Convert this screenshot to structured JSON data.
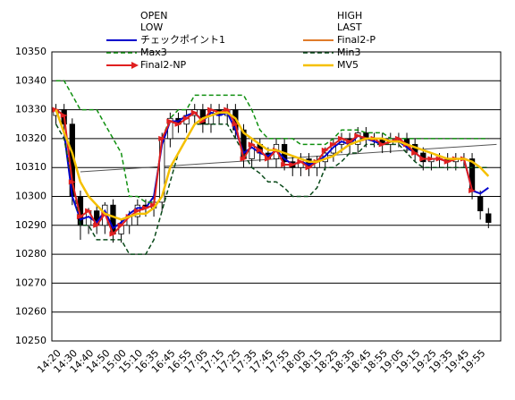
{
  "chart_data": {
    "type": "candlestick",
    "categories": [
      "14:20",
      null,
      "14:30",
      null,
      "14:40",
      null,
      "14:50",
      null,
      "15:00",
      null,
      "15:10",
      null,
      "16:35",
      null,
      "16:45",
      null,
      "16:55",
      null,
      "17:05",
      null,
      "17:15",
      null,
      "17:25",
      null,
      "17:35",
      null,
      "17:45",
      null,
      "17:55",
      null,
      "18:05",
      null,
      "18:15",
      null,
      "18:25",
      null,
      "18:35",
      null,
      "18:45",
      null,
      "18:55",
      null,
      "19:05",
      null,
      "19:15",
      null,
      "19:25",
      null,
      "19:35",
      null,
      "19:45",
      null,
      "19:55",
      null
    ],
    "ylim": [
      10250,
      10350
    ],
    "yticks": [
      10250,
      10260,
      10270,
      10280,
      10290,
      10300,
      10310,
      10320,
      10330,
      10340,
      10350
    ],
    "grid": true,
    "candles": {
      "open": {
        "name": "OPEN",
        "values": [
          10328,
          10330,
          10325,
          10300,
          10290,
          10295,
          10290,
          10297,
          10287,
          10290,
          10293,
          10297,
          10296,
          10298,
          10320,
          10327,
          10325,
          10328,
          10330,
          10325,
          10330,
          10328,
          10330,
          10323,
          10313,
          10318,
          10315,
          10313,
          10318,
          10312,
          10310,
          10313,
          10310,
          10312,
          10315,
          10318,
          10320,
          10318,
          10322,
          10320,
          10320,
          10318,
          10320,
          10320,
          10318,
          10315,
          10312,
          10313,
          10313,
          10312,
          10313,
          10313,
          10300,
          10294
        ]
      },
      "high": {
        "name": "HIGH",
        "values": [
          10332,
          10332,
          10327,
          10302,
          10296,
          10297,
          10298,
          10299,
          10292,
          10295,
          10299,
          10299,
          10300,
          10322,
          10329,
          10329,
          10330,
          10332,
          10332,
          10332,
          10332,
          10332,
          10332,
          10325,
          10320,
          10320,
          10317,
          10320,
          10320,
          10314,
          10315,
          10315,
          10314,
          10317,
          10320,
          10322,
          10322,
          10324,
          10324,
          10322,
          10322,
          10322,
          10322,
          10322,
          10320,
          10317,
          10315,
          10315,
          10315,
          10315,
          10315,
          10315,
          10302,
          10296
        ]
      },
      "low": {
        "name": "LOW",
        "values": [
          10325,
          10322,
          10297,
          10285,
          10287,
          10287,
          10287,
          10284,
          10284,
          10287,
          10290,
          10293,
          10293,
          10295,
          10317,
          10322,
          10322,
          10325,
          10322,
          10322,
          10325,
          10325,
          10320,
          10310,
          10310,
          10312,
          10310,
          10310,
          10309,
          10307,
          10307,
          10307,
          10307,
          10309,
          10312,
          10315,
          10315,
          10315,
          10317,
          10317,
          10315,
          10315,
          10317,
          10315,
          10312,
          10309,
          10309,
          10310,
          10309,
          10309,
          10310,
          10299,
          10292,
          10289
        ]
      },
      "close": {
        "name": "LAST",
        "values": [
          10330,
          10325,
          10300,
          10290,
          10295,
          10290,
          10297,
          10287,
          10290,
          10293,
          10297,
          10296,
          10298,
          10320,
          10327,
          10325,
          10328,
          10330,
          10325,
          10330,
          10328,
          10330,
          10323,
          10313,
          10318,
          10315,
          10313,
          10318,
          10312,
          10310,
          10313,
          10310,
          10312,
          10315,
          10318,
          10320,
          10318,
          10322,
          10320,
          10320,
          10318,
          10320,
          10320,
          10318,
          10315,
          10312,
          10313,
          10313,
          10312,
          10313,
          10313,
          10302,
          10295,
          10291
        ]
      }
    },
    "series": [
      {
        "name": "チェックポイント1",
        "color": "#0000cc",
        "style": "solid",
        "width": 2,
        "values": [
          10330,
          10322,
          10300,
          10292,
          10293,
          10291,
          10295,
          10289,
          10291,
          10294,
          10296,
          10296,
          10300,
          10318,
          10326,
          10326,
          10328,
          10329,
          10326,
          10329,
          10328,
          10329,
          10323,
          10315,
          10317,
          10315,
          10314,
          10316,
          10313,
          10311,
          10312,
          10311,
          10312,
          10314,
          10317,
          10319,
          10318,
          10321,
          10320,
          10319,
          10318,
          10319,
          10319,
          10317,
          10315,
          10313,
          10313,
          10313,
          10312,
          10313,
          10313,
          10302,
          10301,
          10303
        ]
      },
      {
        "name": "Final2-P",
        "color": "#e07b2a",
        "style": "solid",
        "width": 2,
        "values": [
          null,
          null,
          null,
          null,
          null,
          null,
          null,
          null,
          null,
          null,
          null,
          null,
          null,
          null,
          null,
          null,
          null,
          null,
          null,
          null,
          null,
          null,
          null,
          null,
          null,
          null,
          null,
          null,
          null,
          null,
          null,
          null,
          null,
          null,
          null,
          null,
          null,
          null,
          null,
          null,
          null,
          null,
          null,
          null,
          null,
          null,
          null,
          null,
          null,
          null,
          null,
          null,
          null,
          null
        ]
      },
      {
        "name": "Max3",
        "color": "#109010",
        "style": "dashed",
        "width": 1.5,
        "values": [
          10340,
          10340,
          10335,
          10330,
          10330,
          10330,
          10325,
          10320,
          10315,
          10300,
          10300,
          10298,
          10298,
          10320,
          10327,
          10330,
          10330,
          10335,
          10335,
          10335,
          10335,
          10335,
          10335,
          10335,
          10330,
          10323,
          10320,
          10320,
          10320,
          10320,
          10318,
          10318,
          10318,
          10318,
          10320,
          10323,
          10323,
          10323,
          10322,
          10322,
          10322,
          10320,
          10320,
          10320,
          10320,
          10320,
          10320,
          10320,
          10320,
          10320,
          10320,
          10320,
          10320,
          10320
        ]
      },
      {
        "name": "Min3",
        "color": "#0a4a1a",
        "style": "dashed",
        "width": 1.5,
        "values": [
          10325,
          10320,
          10305,
          10290,
          10290,
          10285,
          10285,
          10285,
          10285,
          10280,
          10280,
          10280,
          10285,
          10295,
          10305,
          10315,
          10320,
          10325,
          10325,
          10325,
          10325,
          10325,
          10320,
          10315,
          10310,
          10308,
          10305,
          10305,
          10303,
          10300,
          10300,
          10300,
          10303,
          10310,
          10310,
          10312,
          10315,
          10315,
          10318,
          10318,
          10318,
          10318,
          10318,
          10315,
          10312,
          10310,
          10310,
          10310,
          10310,
          10310,
          10310,
          10310,
          10310,
          10310
        ]
      },
      {
        "name": "Final2-NP",
        "color": "#e02020",
        "style": "arrow",
        "width": 2,
        "values": [
          10330,
          10328,
          10305,
          10293,
          10295,
          10290,
          10294,
          10287,
          10290,
          10293,
          10295,
          10296,
          10297,
          10320,
          10326,
          10325,
          10327,
          10329,
          10326,
          10330,
          10329,
          10330,
          10325,
          10313,
          10318,
          10316,
          10313,
          10316,
          10311,
          10311,
          10312,
          10310,
          10312,
          10316,
          10318,
          10320,
          10319,
          10321,
          10320,
          10320,
          10318,
          10319,
          10320,
          10318,
          10315,
          10313,
          10313,
          10313,
          10312,
          10313,
          10313,
          10302,
          null,
          null
        ]
      },
      {
        "name": "MV5",
        "color": "#f5c000",
        "style": "solid",
        "width": 2.5,
        "values": [
          10330,
          10322,
          10315,
          10305,
          10300,
          10297,
          10294,
          10293,
          10292,
          10293,
          10294,
          10294,
          10296,
          10300,
          10310,
          10315,
          10320,
          10325,
          10327,
          10328,
          10329,
          10329,
          10327,
          10322,
          10320,
          10318,
          10316,
          10316,
          10315,
          10314,
          10313,
          10312,
          10312,
          10313,
          10314,
          10316,
          10318,
          10319,
          10320,
          10320,
          10320,
          10319,
          10319,
          10318,
          10317,
          10316,
          10315,
          10314,
          10313,
          10313,
          10313,
          10312,
          10310,
          10307
        ]
      }
    ],
    "trend": {
      "color": "#555555",
      "x": [
        3,
        54
      ],
      "values": [
        10308.5,
        10318
      ]
    }
  }
}
